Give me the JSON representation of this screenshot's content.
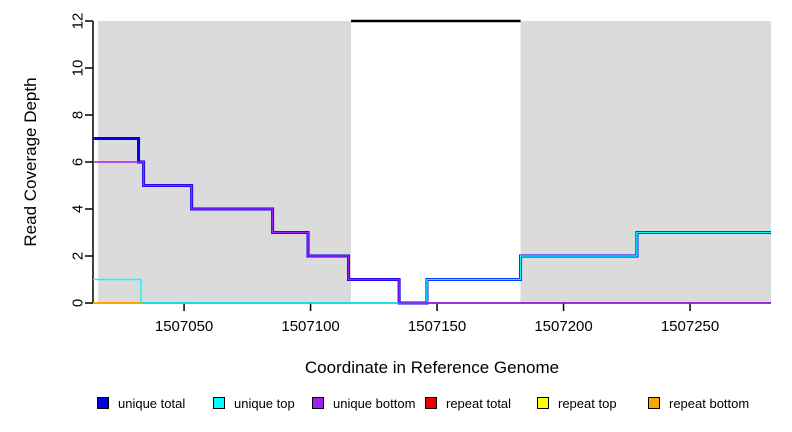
{
  "chart_data": {
    "type": "line",
    "subtype": "step",
    "title": "",
    "xlabel": "Coordinate in Reference Genome",
    "ylabel": "Read Coverage Depth",
    "xlim": [
      1507014,
      1507282
    ],
    "ylim": [
      0,
      12
    ],
    "x_ticks": [
      1507050,
      1507100,
      1507150,
      1507200,
      1507250
    ],
    "y_ticks": [
      0,
      2,
      4,
      6,
      8,
      10,
      12
    ],
    "grid": false,
    "plot_background": "#FFFFFF",
    "shaded_region_color": "#DBDBDB",
    "shaded_regions": [
      {
        "x0": 1507016,
        "x1": 1507116
      },
      {
        "x0": 1507183,
        "x1": 1507282
      }
    ],
    "clip_line": {
      "y": 12,
      "x0": 1507116,
      "x1": 1507183,
      "color": "#000000"
    },
    "series": [
      {
        "name": "unique total",
        "color": "#0000EE",
        "width": 3,
        "steps": [
          [
            1507014,
            7
          ],
          [
            1507032,
            6
          ],
          [
            1507034,
            5
          ],
          [
            1507053,
            4
          ],
          [
            1507085,
            3
          ],
          [
            1507099,
            2
          ],
          [
            1507115,
            1
          ],
          [
            1507135,
            0
          ],
          [
            1507146,
            1
          ],
          [
            1507183,
            2
          ],
          [
            1507229,
            3
          ],
          [
            1507282,
            3
          ]
        ]
      },
      {
        "name": "unique top",
        "color": "#00FFFF",
        "width": 1.5,
        "steps": [
          [
            1507014,
            1
          ],
          [
            1507033,
            0
          ],
          [
            1507146,
            1
          ],
          [
            1507183,
            2
          ],
          [
            1507229,
            3
          ],
          [
            1507282,
            3
          ]
        ]
      },
      {
        "name": "unique bottom",
        "color": "#A020F0",
        "width": 1.5,
        "steps": [
          [
            1507014,
            6
          ],
          [
            1507034,
            5
          ],
          [
            1507053,
            4
          ],
          [
            1507085,
            3
          ],
          [
            1507099,
            2
          ],
          [
            1507115,
            1
          ],
          [
            1507135,
            0
          ],
          [
            1507282,
            0
          ]
        ]
      },
      {
        "name": "repeat bottom",
        "color": "#FFA500",
        "width": 2,
        "steps": [
          [
            1507014,
            0
          ],
          [
            1507033,
            0
          ]
        ]
      }
    ],
    "legend": {
      "position": "bottom",
      "items": [
        {
          "label": "unique total",
          "color": "#0000EE"
        },
        {
          "label": "unique top",
          "color": "#00FFFF"
        },
        {
          "label": "unique bottom",
          "color": "#A020F0"
        },
        {
          "label": "repeat total",
          "color": "#EE0000"
        },
        {
          "label": "repeat top",
          "color": "#FFFF00"
        },
        {
          "label": "repeat bottom",
          "color": "#FFA500"
        }
      ]
    }
  }
}
